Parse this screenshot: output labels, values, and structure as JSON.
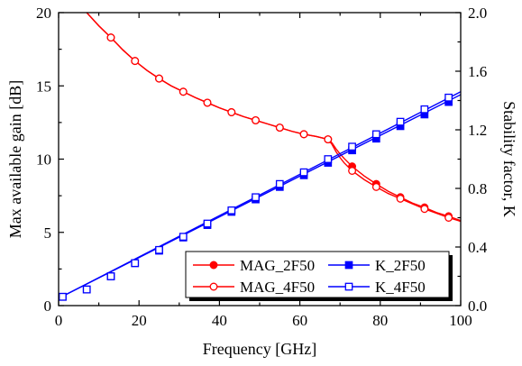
{
  "chart_data": {
    "type": "line",
    "xlabel": "Frequency [GHz]",
    "ylabel_left": "Max available gain [dB]",
    "ylabel_right": "Stability factor, K",
    "xlim": [
      0,
      100
    ],
    "ylim_left": [
      0,
      20
    ],
    "ylim_right": [
      0.0,
      2.0
    ],
    "x_ticks": [
      "0",
      "20",
      "40",
      "60",
      "80",
      "100"
    ],
    "y_left_ticks": [
      "0",
      "5",
      "10",
      "15",
      "20"
    ],
    "y_right_ticks": [
      "0.0",
      "0.4",
      "0.8",
      "1.2",
      "1.6",
      "2.0"
    ],
    "legend_placement": "bottom-right",
    "grid": false,
    "colors": {
      "mag": "#ff0000",
      "k": "#0000ff"
    },
    "series": [
      {
        "name": "MAG_2F50",
        "axis": "left",
        "color": "#ff0000",
        "marker": "filled-circle",
        "x": [
          13,
          19,
          25,
          31,
          37,
          43,
          49,
          55,
          61,
          67,
          73,
          79,
          85,
          91,
          97
        ],
        "y": [
          18.3,
          16.7,
          15.5,
          14.6,
          13.85,
          13.2,
          12.65,
          12.15,
          11.7,
          11.35,
          9.5,
          8.3,
          7.4,
          6.7,
          6.1
        ],
        "curve_x": [
          7,
          10,
          13,
          16,
          19,
          22,
          25,
          28,
          31,
          34,
          37,
          40,
          43,
          46,
          49,
          52,
          55,
          58,
          61,
          64,
          67,
          68,
          69,
          70,
          71,
          73,
          76,
          79,
          82,
          85,
          88,
          91,
          94,
          97,
          100
        ],
        "curve_y": [
          20.0,
          19.1,
          18.3,
          17.45,
          16.7,
          16.05,
          15.5,
          15.0,
          14.6,
          14.2,
          13.85,
          13.5,
          13.2,
          12.9,
          12.65,
          12.4,
          12.15,
          11.9,
          11.7,
          11.55,
          11.35,
          11.1,
          10.7,
          10.35,
          10.05,
          9.5,
          8.85,
          8.3,
          7.8,
          7.4,
          7.0,
          6.7,
          6.35,
          6.1,
          5.8
        ]
      },
      {
        "name": "MAG_4F50",
        "axis": "left",
        "color": "#ff0000",
        "marker": "open-circle",
        "x": [
          13,
          19,
          25,
          31,
          37,
          43,
          49,
          55,
          61,
          67,
          73,
          79,
          85,
          91,
          97
        ],
        "y": [
          18.3,
          16.7,
          15.5,
          14.6,
          13.85,
          13.2,
          12.65,
          12.15,
          11.7,
          11.35,
          9.2,
          8.1,
          7.3,
          6.6,
          6.0
        ],
        "curve_x": [
          7,
          10,
          13,
          16,
          19,
          22,
          25,
          28,
          31,
          34,
          37,
          40,
          43,
          46,
          49,
          52,
          55,
          58,
          61,
          64,
          67,
          68,
          69,
          70,
          71,
          73,
          76,
          79,
          82,
          85,
          88,
          91,
          94,
          97,
          100
        ],
        "curve_y": [
          20.0,
          19.1,
          18.3,
          17.45,
          16.7,
          16.05,
          15.5,
          15.0,
          14.6,
          14.2,
          13.85,
          13.5,
          13.2,
          12.9,
          12.65,
          12.4,
          12.15,
          11.9,
          11.7,
          11.55,
          11.35,
          11.0,
          10.5,
          10.1,
          9.75,
          9.2,
          8.6,
          8.1,
          7.65,
          7.3,
          6.95,
          6.6,
          6.3,
          6.0,
          5.75
        ]
      },
      {
        "name": "K_2F50",
        "axis": "right",
        "color": "#0000ff",
        "marker": "filled-square",
        "x": [
          1,
          7,
          13,
          19,
          25,
          31,
          37,
          43,
          49,
          55,
          61,
          67,
          73,
          79,
          85,
          91,
          97
        ],
        "y": [
          0.06,
          0.11,
          0.2,
          0.29,
          0.375,
          0.465,
          0.55,
          0.64,
          0.725,
          0.81,
          0.89,
          0.975,
          1.06,
          1.14,
          1.225,
          1.305,
          1.39
        ],
        "curve_x": [
          0,
          100
        ],
        "curve_y": [
          0.05,
          1.44
        ]
      },
      {
        "name": "K_4F50",
        "axis": "right",
        "color": "#0000ff",
        "marker": "open-square",
        "x": [
          1,
          7,
          13,
          19,
          25,
          31,
          37,
          43,
          49,
          55,
          61,
          67,
          73,
          79,
          85,
          91,
          97
        ],
        "y": [
          0.06,
          0.11,
          0.2,
          0.29,
          0.38,
          0.47,
          0.56,
          0.65,
          0.74,
          0.83,
          0.91,
          1.0,
          1.085,
          1.17,
          1.255,
          1.34,
          1.42
        ],
        "curve_x": [
          0,
          100
        ],
        "curve_y": [
          0.05,
          1.46
        ]
      }
    ]
  }
}
